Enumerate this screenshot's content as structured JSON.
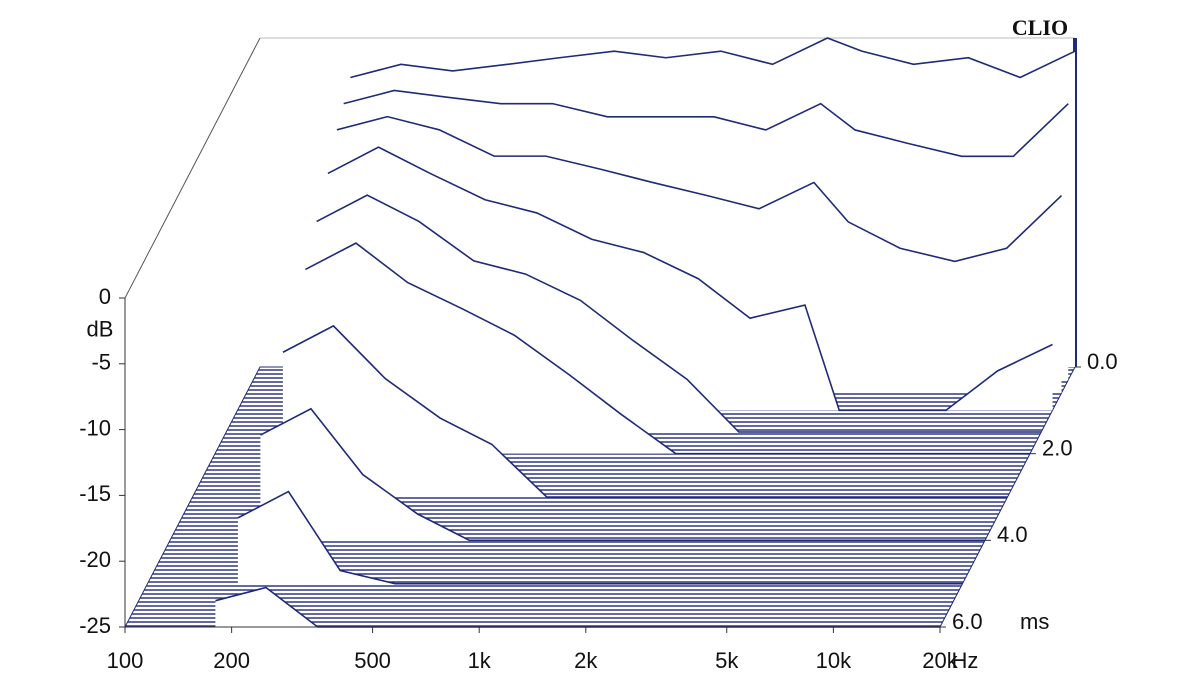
{
  "chart_data": {
    "type": "waterfall",
    "title": "CLIO",
    "color": "#1f2a78",
    "xlabel": "Hz",
    "ylabel": "dB",
    "zlabel": "ms",
    "log_x": true,
    "xlim": [
      100,
      20000
    ],
    "xticks": [
      100,
      200,
      500,
      {
        "value": 1000,
        "label": "1k"
      },
      {
        "value": 2000,
        "label": "2k"
      },
      {
        "value": 5000,
        "label": "5k"
      },
      {
        "value": 10000,
        "label": "10k"
      },
      {
        "value": 20000,
        "label": "20k"
      }
    ],
    "ylim": [
      -25,
      0
    ],
    "yticks": [
      0,
      -5,
      -10,
      -15,
      -20,
      -25
    ],
    "zlim": [
      0,
      6
    ],
    "zticks": [
      {
        "value": 0,
        "label": "0.0"
      },
      {
        "value": 2,
        "label": "2.0"
      },
      {
        "value": 4,
        "label": "4.0"
      },
      {
        "value": 6,
        "label": "6.0"
      }
    ],
    "frequencies": [
      180,
      250,
      350,
      500,
      700,
      1000,
      1400,
      2000,
      2800,
      4000,
      5000,
      7000,
      10000,
      14000,
      20000
    ],
    "slices": [
      {
        "time": 0,
        "values": [
          -3,
          -2,
          -2.5,
          -2,
          -1.5,
          -1,
          -1.5,
          -1,
          -2,
          0,
          -1,
          -2,
          -1.5,
          -3,
          -1
        ]
      },
      {
        "time": 0.3,
        "values": [
          -4,
          -3,
          -3.5,
          -4,
          -4,
          -5,
          -5,
          -5,
          -6,
          -4,
          -6,
          -7,
          -8,
          -8,
          -4
        ]
      },
      {
        "time": 0.6,
        "values": [
          -5,
          -4,
          -5,
          -7,
          -7,
          -8,
          -9,
          -10,
          -11,
          -9,
          -12,
          -14,
          -15,
          -14,
          -10
        ]
      },
      {
        "time": 1,
        "values": [
          -7,
          -5,
          -7,
          -9,
          -10,
          -12,
          -13,
          -15,
          -18,
          -17,
          -25,
          -25,
          -25,
          -22,
          -20
        ]
      },
      {
        "time": 1.5,
        "values": [
          -9,
          -7,
          -9,
          -12,
          -13,
          -15,
          -18,
          -21,
          -25,
          -25,
          -25,
          -25,
          -25,
          -25,
          -25
        ]
      },
      {
        "time": 2,
        "values": [
          -11,
          -9,
          -12,
          -14,
          -16,
          -19,
          -22,
          -25,
          -25,
          -25,
          -25,
          -25,
          -25,
          -25,
          -25
        ]
      },
      {
        "time": 3,
        "values": [
          -14,
          -12,
          -16,
          -19,
          -21,
          -25,
          -25,
          -25,
          -25,
          -25,
          -25,
          -25,
          -25,
          -25,
          -25
        ]
      },
      {
        "time": 4,
        "values": [
          -17,
          -15,
          -20,
          -23,
          -25,
          -25,
          -25,
          -25,
          -25,
          -25,
          -25,
          -25,
          -25,
          -25,
          -25
        ]
      },
      {
        "time": 5,
        "values": [
          -20,
          -18,
          -24,
          -25,
          -25,
          -25,
          -25,
          -25,
          -25,
          -25,
          -25,
          -25,
          -25,
          -25,
          -25
        ]
      },
      {
        "time": 6,
        "values": [
          -23,
          -22,
          -25,
          -25,
          -25,
          -25,
          -25,
          -25,
          -25,
          -25,
          -25,
          -25,
          -25,
          -25,
          -25
        ]
      }
    ]
  }
}
